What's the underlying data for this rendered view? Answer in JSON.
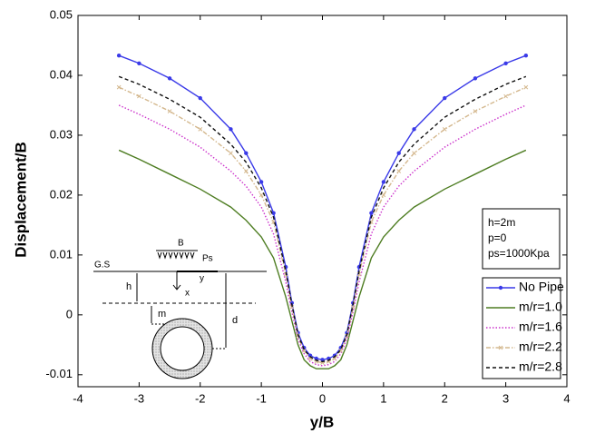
{
  "chart_data": {
    "type": "line",
    "x_label": "y/B",
    "y_label": "Displacement/B",
    "xlim": [
      -4,
      4
    ],
    "ylim": [
      -0.012,
      0.05
    ],
    "xticks": [
      -4,
      -3,
      -2,
      -1,
      0,
      1,
      2,
      3,
      4
    ],
    "yticks": [
      -0.01,
      0,
      0.01,
      0.02,
      0.03,
      0.04,
      0.05
    ],
    "legend_position": "lower right",
    "x": [
      -3.33,
      -3,
      -2.5,
      -2,
      -1.5,
      -1.25,
      -1,
      -0.8,
      -0.6,
      -0.5,
      -0.4,
      -0.3,
      -0.2,
      -0.1,
      0,
      0.1,
      0.2,
      0.3,
      0.4,
      0.5,
      0.6,
      0.8,
      1,
      1.25,
      1.5,
      2,
      2.5,
      3,
      3.33
    ],
    "series": [
      {
        "name": "No Pipe",
        "color": "#3a3ae8",
        "style": "solid",
        "marker": "circle",
        "values": [
          0.0433,
          0.042,
          0.0395,
          0.0362,
          0.031,
          0.027,
          0.0222,
          0.017,
          0.008,
          0.002,
          -0.003,
          -0.0055,
          -0.0068,
          -0.0073,
          -0.0075,
          -0.0073,
          -0.0068,
          -0.0055,
          -0.003,
          0.002,
          0.008,
          0.017,
          0.0222,
          0.027,
          0.031,
          0.0362,
          0.0395,
          0.042,
          0.0433
        ]
      },
      {
        "name": "m/r=1.0",
        "color": "#4e7d22",
        "style": "solid",
        "marker": "none",
        "values": [
          0.0275,
          0.026,
          0.0235,
          0.021,
          0.018,
          0.0158,
          0.013,
          0.0095,
          0.003,
          -0.001,
          -0.005,
          -0.0075,
          -0.0085,
          -0.009,
          -0.009,
          -0.009,
          -0.0085,
          -0.0075,
          -0.005,
          -0.001,
          0.003,
          0.0095,
          0.013,
          0.0158,
          0.018,
          0.021,
          0.0235,
          0.026,
          0.0275
        ]
      },
      {
        "name": "m/r=1.6",
        "color": "#cc33cc",
        "style": "dotted",
        "marker": "none",
        "values": [
          0.035,
          0.0335,
          0.031,
          0.028,
          0.024,
          0.0215,
          0.018,
          0.0135,
          0.0055,
          0.0005,
          -0.004,
          -0.0065,
          -0.0078,
          -0.0083,
          -0.0085,
          -0.0083,
          -0.0078,
          -0.0065,
          -0.004,
          0.0005,
          0.0055,
          0.0135,
          0.018,
          0.0215,
          0.024,
          0.028,
          0.031,
          0.0335,
          0.035
        ]
      },
      {
        "name": "m/r=2.2",
        "color": "#d4b88e",
        "style": "dashdot",
        "marker": "cross",
        "values": [
          0.038,
          0.0365,
          0.034,
          0.031,
          0.027,
          0.024,
          0.02,
          0.0155,
          0.0068,
          0.0013,
          -0.0035,
          -0.006,
          -0.0073,
          -0.0078,
          -0.008,
          -0.0078,
          -0.0073,
          -0.006,
          -0.0035,
          0.0013,
          0.0068,
          0.0155,
          0.02,
          0.024,
          0.027,
          0.031,
          0.034,
          0.0365,
          0.038
        ]
      },
      {
        "name": "m/r=2.8",
        "color": "#111111",
        "style": "dashed",
        "marker": "none",
        "values": [
          0.0398,
          0.0385,
          0.036,
          0.033,
          0.0285,
          0.0255,
          0.0212,
          0.0163,
          0.0073,
          0.0017,
          -0.0033,
          -0.0058,
          -0.007,
          -0.0076,
          -0.0078,
          -0.0076,
          -0.007,
          -0.0058,
          -0.0033,
          0.0017,
          0.0073,
          0.0163,
          0.0212,
          0.0255,
          0.0285,
          0.033,
          0.036,
          0.0385,
          0.0398
        ]
      }
    ],
    "annotations": [
      "h=2m",
      "p=0",
      "ps=1000Kpa"
    ],
    "inset_labels": {
      "load": "B",
      "pressure": "Ps",
      "ground": "G.S",
      "y_axis": "y",
      "x_axis": "x",
      "depth": "h",
      "cover": "m",
      "pipe_depth": "d"
    }
  }
}
